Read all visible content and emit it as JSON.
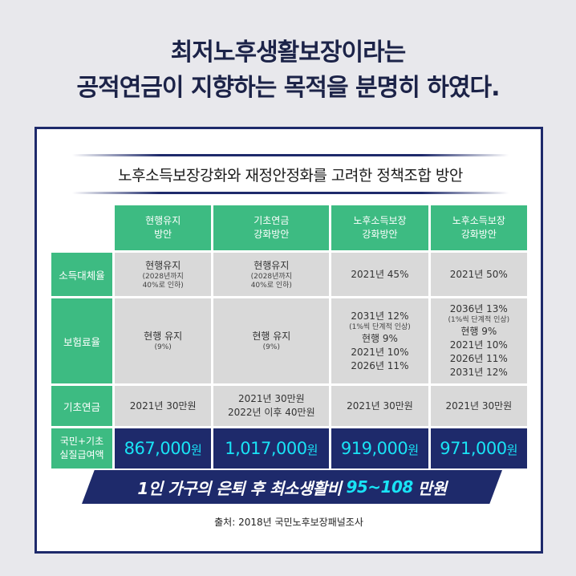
{
  "headline": {
    "line1": "최저노후생활보장이라는",
    "line2": "공적연금이 지향하는 목적을 분명히 하였다."
  },
  "subtitle": "노후소득보장강화와 재정안정화를 고려한 정책조합 방안",
  "columns": [
    {
      "line1": "현행유지",
      "line2": "방안"
    },
    {
      "line1": "기초연금",
      "line2": "강화방안"
    },
    {
      "line1": "노후소득보장",
      "line2": "강화방안"
    },
    {
      "line1": "노후소득보장",
      "line2": "강화방안"
    }
  ],
  "rows": {
    "income_replacement": {
      "label": "소득대체율",
      "c1": {
        "main": "현행유지",
        "note1": "(2028년까지",
        "note2": "40%로 인하)"
      },
      "c2": {
        "main": "현행유지",
        "note1": "(2028년까지",
        "note2": "40%로 인하)"
      },
      "c3": "2021년 45%",
      "c4": "2021년 50%"
    },
    "premium_rate": {
      "label": "보험료율",
      "c1": {
        "main": "현행 유지",
        "note": "(9%)"
      },
      "c2": {
        "main": "현행 유지",
        "note": "(9%)"
      },
      "c3": {
        "l1": "2031년 12%",
        "note": "(1%씩 단계적 인상)",
        "l2": "현행 9%",
        "l3": "2021년 10%",
        "l4": "2026년 11%"
      },
      "c4": {
        "l1": "2036년 13%",
        "note": "(1%씩 단계적 인상)",
        "l2": "현행 9%",
        "l3": "2021년 10%",
        "l4": "2026년 11%",
        "l5": "2031년 12%"
      }
    },
    "basic_pension": {
      "label": "기초연금",
      "c1": "2021년 30만원",
      "c2": {
        "l1": "2021년 30만원",
        "l2": "2022년 이후 40만원"
      },
      "c3": "2021년 30만원",
      "c4": "2021년 30만원"
    },
    "benefit": {
      "label1": "국민+기초",
      "label2": "실질급여액",
      "values": [
        {
          "num": "867,000",
          "unit": "원"
        },
        {
          "num": "1,017,000",
          "unit": "원"
        },
        {
          "num": "919,000",
          "unit": "원"
        },
        {
          "num": "971,000",
          "unit": "원"
        }
      ]
    }
  },
  "banner": {
    "pre": "1인 가구의 은퇴 후 최소생활비",
    "highlight": "95~108",
    "post": "만원"
  },
  "source": "출처: 2018년 국민노후보장패널조사",
  "colors": {
    "navy": "#1e2a6b",
    "green": "#3dbb82",
    "cyan": "#19e3f5",
    "gray_cell": "#d9d9d9"
  }
}
